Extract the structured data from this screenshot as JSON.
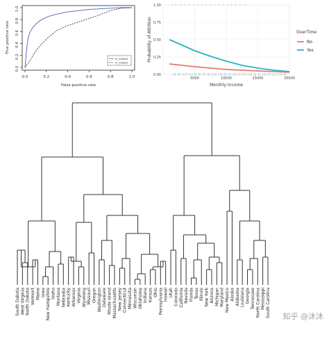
{
  "chart_data": [
    {
      "type": "line",
      "title": "",
      "xlabel": "False positive rate",
      "ylabel": "True positive rate",
      "xlim": [
        0,
        1
      ],
      "ylim": [
        0,
        1
      ],
      "xticks": [
        "0.0",
        "0.2",
        "0.4",
        "0.6",
        "0.8",
        "1.0"
      ],
      "yticks": [
        "0.0",
        "0.2",
        "0.4",
        "0.6",
        "0.8",
        "1.0"
      ],
      "legend": "bottom-right",
      "series": [
        {
          "name": "m_model1",
          "color": "#4a5fc4",
          "style": "solid",
          "x": [
            0,
            0.01,
            0.02,
            0.03,
            0.05,
            0.07,
            0.1,
            0.13,
            0.16,
            0.2,
            0.25,
            0.3,
            0.35,
            0.4,
            0.5,
            0.6,
            0.7,
            0.8,
            0.9,
            1.0
          ],
          "y": [
            0,
            0.2,
            0.38,
            0.5,
            0.6,
            0.66,
            0.72,
            0.77,
            0.8,
            0.84,
            0.87,
            0.89,
            0.91,
            0.93,
            0.95,
            0.97,
            0.98,
            0.99,
            1.0,
            1.0
          ]
        },
        {
          "name": "m_model2",
          "color": "#333333",
          "style": "dashed",
          "x": [
            0,
            0.02,
            0.05,
            0.08,
            0.12,
            0.16,
            0.2,
            0.25,
            0.3,
            0.35,
            0.4,
            0.5,
            0.6,
            0.7,
            0.8,
            0.9,
            1.0
          ],
          "y": [
            0,
            0.05,
            0.12,
            0.22,
            0.32,
            0.4,
            0.47,
            0.55,
            0.62,
            0.66,
            0.7,
            0.76,
            0.82,
            0.88,
            0.95,
            0.99,
            1.0
          ]
        }
      ]
    },
    {
      "type": "line",
      "title": "",
      "xlabel": "Monthly Income",
      "ylabel": "Probability of Attrition",
      "xlim": [
        0,
        20000
      ],
      "ylim": [
        0,
        1
      ],
      "xticks": [
        "5000",
        "10000",
        "15000",
        "20000"
      ],
      "yticks": [
        "0.00",
        "0.25",
        "0.50",
        "0.75",
        "1.00"
      ],
      "grid": true,
      "legend": "right",
      "legend_title": "OverTime",
      "series": [
        {
          "name": "No",
          "color": "#e8766e",
          "x": [
            1000,
            3000,
            5000,
            7500,
            10000,
            12500,
            15000,
            17500,
            20000
          ],
          "y": [
            0.15,
            0.13,
            0.11,
            0.09,
            0.07,
            0.06,
            0.05,
            0.04,
            0.03
          ]
        },
        {
          "name": "Yes",
          "color": "#20b6c4",
          "x": [
            1000,
            3000,
            5000,
            7500,
            10000,
            12500,
            15000,
            17500,
            20000
          ],
          "y": [
            0.5,
            0.42,
            0.34,
            0.26,
            0.19,
            0.13,
            0.09,
            0.06,
            0.04
          ]
        }
      ]
    },
    {
      "type": "dendrogram",
      "title": "",
      "leaves": [
        "South Dakota",
        "West Virginia",
        "North Dakota",
        "Vermont",
        "Maine",
        "Iowa",
        "New Hampshire",
        "Idaho",
        "Montana",
        "Nebraska",
        "Kentucky",
        "Arkansas",
        "Virginia",
        "Wyoming",
        "Missouri",
        "Oregon",
        "Washington",
        "Delaware",
        "Rhode Island",
        "Massachusetts",
        "New Jersey",
        "Connecticut",
        "Minnesota",
        "Wisconsin",
        "Oklahoma",
        "Indiana",
        "Kansas",
        "Ohio",
        "Pennsylvania",
        "Hawaii",
        "Utah",
        "Colorado",
        "California",
        "Nevada",
        "Florida",
        "Texas",
        "Illinois",
        "New York",
        "Arizona",
        "Michigan",
        "Maryland",
        "New Mexico",
        "Alaska",
        "Alabama",
        "Louisiana",
        "Georgia",
        "Tennessee",
        "North Carolina",
        "Mississippi",
        "South Carolina"
      ]
    }
  ],
  "watermark": "知乎 @沐沐"
}
